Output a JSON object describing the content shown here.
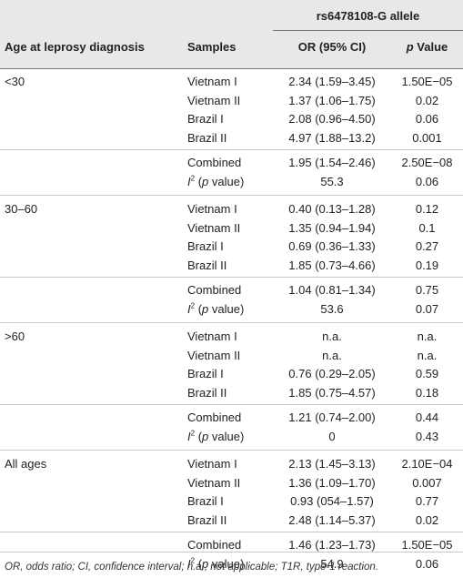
{
  "header": {
    "allele": "rs6478108-G allele",
    "age_col": "Age at leprosy diagnosis",
    "samples_col": "Samples",
    "or_col": "OR (95% CI)",
    "p_col_italic": "p",
    "p_col_rest": " Value"
  },
  "i2_label_letter": "I",
  "i2_label_sup": "2",
  "i2_label_paren_open": " (",
  "i2_label_p": "p",
  "i2_label_rest": " value)",
  "groups": [
    {
      "age": "<30",
      "rows": [
        {
          "sample": "Vietnam I",
          "or": "2.34 (1.59–3.45)",
          "p": "1.50E−05"
        },
        {
          "sample": "Vietnam II",
          "or": "1.37 (1.06–1.75)",
          "p": "0.02"
        },
        {
          "sample": "Brazil I",
          "or": "2.08 (0.96–4.50)",
          "p": "0.06"
        },
        {
          "sample": "Brazil II",
          "or": "4.97 (1.88–13.2)",
          "p": "0.001"
        }
      ],
      "combined": {
        "sample": "Combined",
        "or": "1.95 (1.54–2.46)",
        "p": "2.50E−08"
      },
      "i2": {
        "or": "55.3",
        "p": "0.06"
      }
    },
    {
      "age": "30–60",
      "rows": [
        {
          "sample": "Vietnam I",
          "or": "0.40 (0.13–1.28)",
          "p": "0.12"
        },
        {
          "sample": "Vietnam II",
          "or": "1.35 (0.94–1.94)",
          "p": "0.1"
        },
        {
          "sample": "Brazil I",
          "or": "0.69 (0.36–1.33)",
          "p": "0.27"
        },
        {
          "sample": "Brazil II",
          "or": "1.85 (0.73–4.66)",
          "p": "0.19"
        }
      ],
      "combined": {
        "sample": "Combined",
        "or": "1.04 (0.81–1.34)",
        "p": "0.75"
      },
      "i2": {
        "or": "53.6",
        "p": "0.07"
      }
    },
    {
      "age": ">60",
      "rows": [
        {
          "sample": "Vietnam I",
          "or": "n.a.",
          "p": "n.a."
        },
        {
          "sample": "Vietnam II",
          "or": "n.a.",
          "p": "n.a."
        },
        {
          "sample": "Brazil I",
          "or": "0.76 (0.29–2.05)",
          "p": "0.59"
        },
        {
          "sample": "Brazil II",
          "or": "1.85 (0.75–4.57)",
          "p": "0.18"
        }
      ],
      "combined": {
        "sample": "Combined",
        "or": "1.21 (0.74–2.00)",
        "p": "0.44"
      },
      "i2": {
        "or": "0",
        "p": "0.43"
      }
    },
    {
      "age": "All ages",
      "rows": [
        {
          "sample": "Vietnam I",
          "or": "2.13 (1.45–3.13)",
          "p": "2.10E−04"
        },
        {
          "sample": "Vietnam II",
          "or": "1.36 (1.09–1.70)",
          "p": "0.007"
        },
        {
          "sample": "Brazil I",
          "or": "0.93 (054–1.57)",
          "p": "0.77"
        },
        {
          "sample": "Brazil II",
          "or": "2.48 (1.14–5.37)",
          "p": "0.02"
        }
      ],
      "combined": {
        "sample": "Combined",
        "or": "1.46 (1.23–1.73)",
        "p": "1.50E−05"
      },
      "i2": {
        "or": "54.9",
        "p": "0.06"
      }
    }
  ],
  "footnote": "OR, odds ratio; CI, confidence interval; n.a., not applicable; T1R, type-1 reaction."
}
